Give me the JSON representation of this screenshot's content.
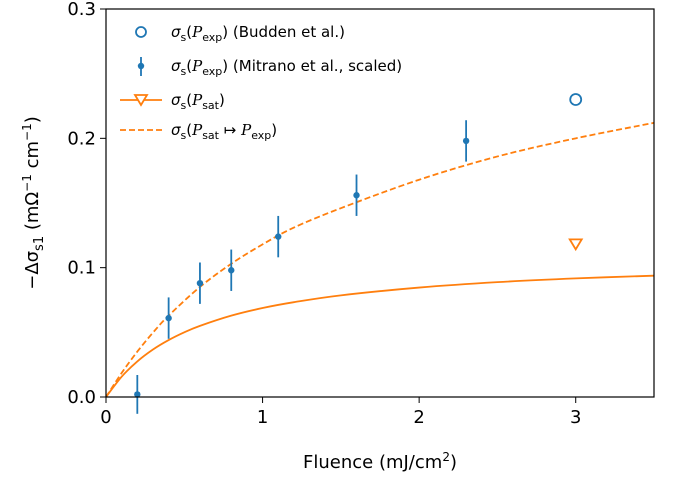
{
  "chart_data": {
    "type": "scatter",
    "xlabel": "Fluence (mJ/cm",
    "xlabel_sup": "2",
    "xlabel_end": ")",
    "ylabel_prefix": "−Δσ",
    "ylabel_sub": "s1",
    "ylabel_units": "(mΩ",
    "ylabel_sup1": "−1",
    "ylabel_units2": " cm",
    "ylabel_sup2": "−1",
    "ylabel_end": ")",
    "xlim": [
      0,
      3.5
    ],
    "ylim": [
      0,
      0.3
    ],
    "xticks": [
      0,
      1,
      2,
      3
    ],
    "yticks": [
      0.0,
      0.1,
      0.2,
      0.3
    ],
    "xtick_labels": [
      "0",
      "1",
      "2",
      "3"
    ],
    "ytick_labels": [
      "0.0",
      "0.1",
      "0.2",
      "0.3"
    ],
    "legend_position": "upper-left",
    "colors": {
      "blue": "#1f77b4",
      "orange": "#ff7f0e"
    },
    "series": [
      {
        "name": "σs(Pexp) (Budden et al.)",
        "legend": {
          "main": "σ",
          "sub1": "s",
          "paren_open": "(",
          "script": "P",
          "sub2": "exp",
          "paren_close": ")",
          "rest": " (Budden et al.)"
        },
        "marker": "open-circle",
        "color": "#1f77b4",
        "x": [
          3.0
        ],
        "y": [
          0.23
        ]
      },
      {
        "name": "σs(Pexp) (Mitrano et al., scaled)",
        "legend": {
          "main": "σ",
          "sub1": "s",
          "paren_open": "(",
          "script": "P",
          "sub2": "exp",
          "paren_close": ")",
          "rest": " (Mitrano et al., scaled)"
        },
        "marker": "dot-errorbar",
        "color": "#1f77b4",
        "x": [
          0.2,
          0.4,
          0.6,
          0.8,
          1.1,
          1.6,
          2.3
        ],
        "y": [
          0.002,
          0.061,
          0.088,
          0.098,
          0.124,
          0.156,
          0.198
        ],
        "yerr": [
          0.015,
          0.016,
          0.016,
          0.016,
          0.016,
          0.016,
          0.016
        ]
      },
      {
        "name": "σs(Psat)",
        "legend": {
          "main": "σ",
          "sub1": "s",
          "paren_open": "(",
          "script": "P",
          "sub2": "sat",
          "paren_close": ")",
          "rest": ""
        },
        "marker": "line-triangle",
        "color": "#ff7f0e",
        "x": [
          0.0,
          0.1,
          0.2,
          0.3,
          0.4,
          0.5,
          0.6,
          0.8,
          1.0,
          1.2,
          1.5,
          2.0,
          2.5,
          3.0,
          3.5
        ],
        "y": [
          0.0,
          0.0157,
          0.0275,
          0.0367,
          0.044,
          0.05,
          0.055,
          0.0629,
          0.0688,
          0.0733,
          0.0786,
          0.0846,
          0.0888,
          0.0917,
          0.0938
        ],
        "marker_point": {
          "x": 3.0,
          "y": 0.118
        }
      },
      {
        "name": "σs(Psat ↦ Pexp)",
        "legend": {
          "main": "σ",
          "sub1": "s",
          "paren_open": "(",
          "script": "P",
          "sub2": "sat",
          "arrow": " ↦ ",
          "script2": "P",
          "sub3": "exp",
          "paren_close": ")",
          "rest": ""
        },
        "marker": "dashed-line",
        "color": "#ff7f0e",
        "x": [
          0.0,
          0.1,
          0.2,
          0.3,
          0.4,
          0.6,
          0.8,
          1.0,
          1.2,
          1.5,
          2.0,
          2.5,
          3.0,
          3.5
        ],
        "y": [
          0.0,
          0.0186,
          0.0351,
          0.0498,
          0.0629,
          0.0851,
          0.103,
          0.118,
          0.131,
          0.146,
          0.168,
          0.186,
          0.2,
          0.212
        ]
      }
    ]
  }
}
